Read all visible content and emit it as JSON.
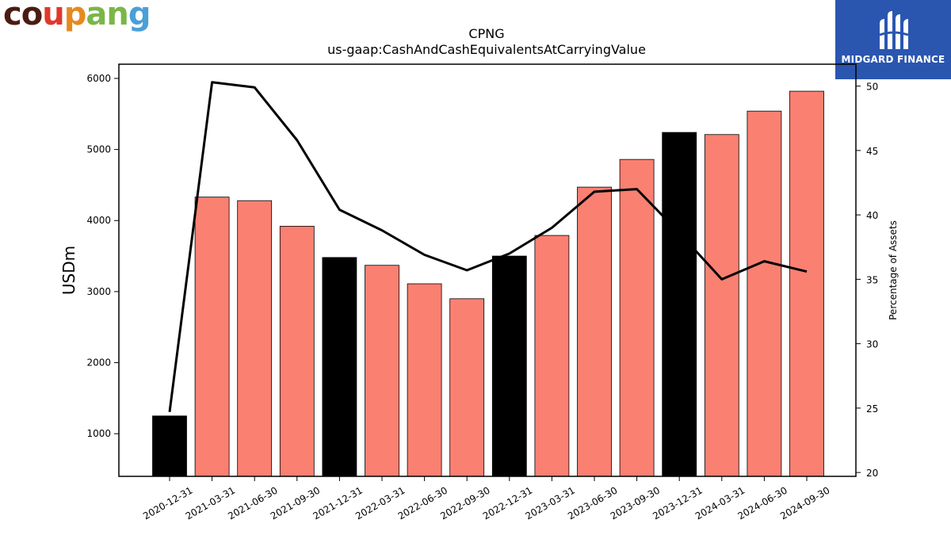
{
  "logo": {
    "text": "coupang",
    "colors": [
      "#4a1c11",
      "#4a1c11",
      "#e0382c",
      "#e58a1f",
      "#7ab648",
      "#7ab648",
      "#4a9fd8"
    ]
  },
  "brand": {
    "name": "MIDGARD FINANCE",
    "background": "#2a56b0"
  },
  "chart_data": {
    "type": "bar+line",
    "title": "CPNG",
    "subtitle": "us-gaap:CashAndCashEquivalentsAtCarryingValue",
    "ylabel": "USDm",
    "y2label": "Percentage of Assets",
    "ylim": [
      400,
      6200
    ],
    "y2lim": [
      19.7,
      51.7
    ],
    "yticks": [
      "1000",
      "2000",
      "3000",
      "4000",
      "5000",
      "6000"
    ],
    "y2ticks": [
      "20",
      "25",
      "30",
      "35",
      "40",
      "45",
      "50"
    ],
    "categories": [
      "2020-12-31",
      "2021-03-31",
      "2021-06-30",
      "2021-09-30",
      "2021-12-31",
      "2022-03-31",
      "2022-06-30",
      "2022-09-30",
      "2022-12-31",
      "2023-03-31",
      "2023-06-30",
      "2023-09-30",
      "2023-12-31",
      "2024-03-31",
      "2024-06-30",
      "2024-09-30"
    ],
    "bar_series": {
      "name": "",
      "values": [
        1250,
        4330,
        4280,
        3920,
        3480,
        3370,
        3110,
        2900,
        3500,
        3790,
        4470,
        4860,
        5240,
        5210,
        5540,
        5820
      ],
      "annual": [
        true,
        false,
        false,
        false,
        true,
        false,
        false,
        false,
        true,
        false,
        false,
        false,
        true,
        false,
        false,
        false
      ],
      "color_quarter": "#fa8072",
      "color_annual": "#000000"
    },
    "line_series": {
      "name": "",
      "values": [
        24.7,
        50.3,
        49.9,
        45.8,
        40.4,
        38.8,
        36.9,
        35.7,
        37.0,
        39.0,
        41.8,
        42.0,
        38.6,
        35.0,
        36.4,
        35.6
      ],
      "color": "#000000"
    },
    "grid": false,
    "legend": "none"
  }
}
